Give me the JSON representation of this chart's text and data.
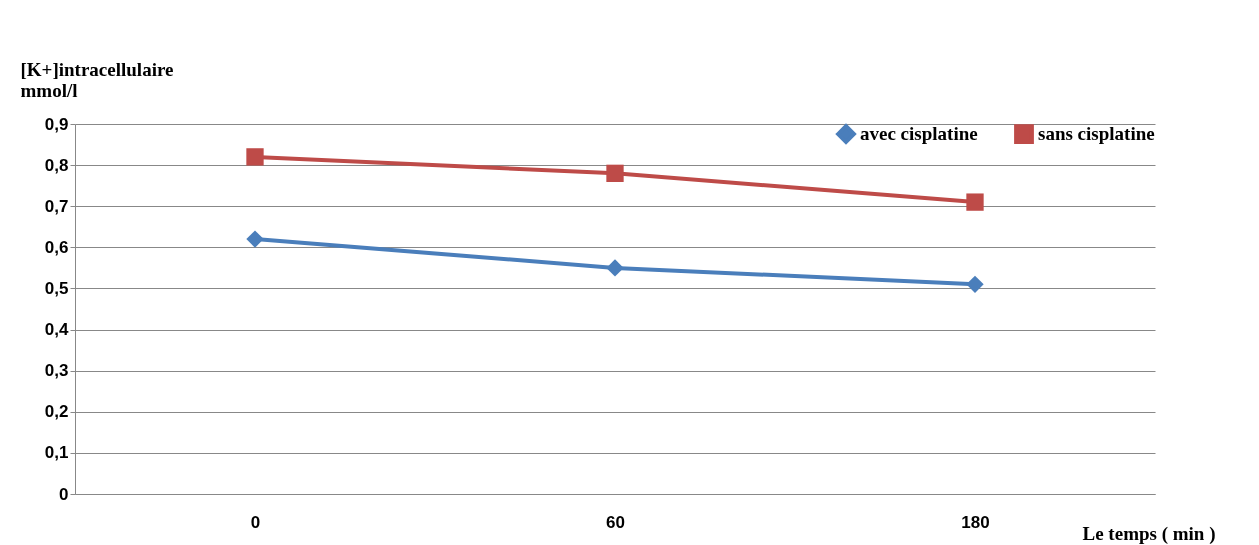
{
  "chart_data": {
    "type": "line",
    "xlabel": "Le temps ( min )",
    "ylabel": "[K+]intracellulaire\nmmol/l",
    "categories": [
      "0",
      "60",
      "180"
    ],
    "series": [
      {
        "name": "avec cisplatine",
        "color": "#4a7ebb",
        "marker": "diamond",
        "values": [
          0.62,
          0.55,
          0.51
        ]
      },
      {
        "name": "sans cisplatine",
        "color": "#be4b48",
        "marker": "square",
        "values": [
          0.82,
          0.78,
          0.71
        ]
      }
    ],
    "ylim": [
      0,
      0.9
    ],
    "yticks": [
      0,
      {
        "value": 0.1,
        "label": "0,1"
      },
      {
        "value": 0.2,
        "label": "0,2"
      },
      {
        "value": 0.3,
        "label": "0,3"
      },
      {
        "value": 0.4,
        "label": "0,4"
      },
      {
        "value": 0.5,
        "label": "0,5"
      },
      {
        "value": 0.6,
        "label": "0,6"
      },
      {
        "value": 0.7,
        "label": "0,7"
      },
      {
        "value": 0.8,
        "label": "0,8"
      },
      {
        "value": 0.9,
        "label": "0,9"
      }
    ],
    "grid": "y",
    "legend": "top right",
    "line_style": "solid"
  }
}
